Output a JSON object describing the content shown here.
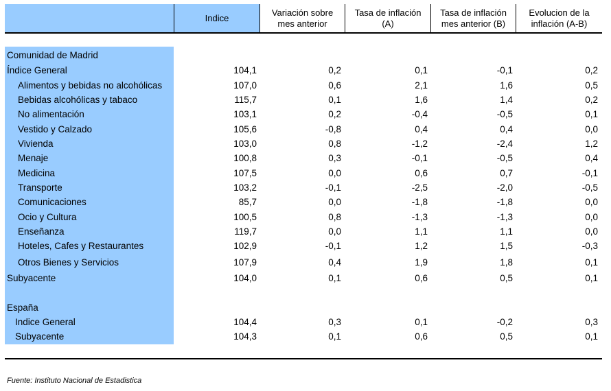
{
  "header": {
    "columns": [
      "Indice",
      "Variación sobre mes anterior",
      "Tasa de inflación (A)",
      "Tasa de inflación mes anterior (B)",
      "Evolucion de la inflación (A-B)"
    ]
  },
  "sections": [
    {
      "title": "Comunidad de Madrid",
      "rows": [
        {
          "label": "Índice General",
          "indent": 0,
          "values": [
            "104,1",
            "0,2",
            "0,1",
            "-0,1",
            "0,2"
          ]
        },
        {
          "label": "Alimentos y bebidas no alcohólicas",
          "indent": 1,
          "values": [
            "107,0",
            "0,6",
            "2,1",
            "1,6",
            "0,5"
          ]
        },
        {
          "label": "Bebidas alcohólicas y tabaco",
          "indent": 1,
          "values": [
            "115,7",
            "0,1",
            "1,6",
            "1,4",
            "0,2"
          ]
        },
        {
          "label": "No alimentación",
          "indent": 1,
          "values": [
            "103,1",
            "0,2",
            "-0,4",
            "-0,5",
            "0,1"
          ]
        },
        {
          "label": "Vestido y Calzado",
          "indent": 1,
          "values": [
            "105,6",
            "-0,8",
            "0,4",
            "0,4",
            "0,0"
          ]
        },
        {
          "label": "Vivienda",
          "indent": 1,
          "values": [
            "103,0",
            "0,8",
            "-1,2",
            "-2,4",
            "1,2"
          ]
        },
        {
          "label": "Menaje",
          "indent": 1,
          "values": [
            "100,8",
            "0,3",
            "-0,1",
            "-0,5",
            "0,4"
          ]
        },
        {
          "label": "Medicina",
          "indent": 1,
          "values": [
            "107,5",
            "0,0",
            "0,6",
            "0,7",
            "-0,1"
          ]
        },
        {
          "label": "Transporte",
          "indent": 1,
          "values": [
            "103,2",
            "-0,1",
            "-2,5",
            "-2,0",
            "-0,5"
          ]
        },
        {
          "label": "Comunicaciones",
          "indent": 1,
          "values": [
            "85,7",
            "0,0",
            "-1,8",
            "-1,8",
            "0,0"
          ]
        },
        {
          "label": "Ocio y Cultura",
          "indent": 1,
          "values": [
            "100,5",
            "0,8",
            "-1,3",
            "-1,3",
            "0,0"
          ]
        },
        {
          "label": "Enseñanza",
          "indent": 1,
          "values": [
            "119,7",
            "0,0",
            "1,1",
            "1,1",
            "0,0"
          ]
        },
        {
          "label": "Hoteles, Cafes y Restaurantes",
          "indent": 1,
          "values": [
            "102,9",
            "-0,1",
            "1,2",
            "1,5",
            "-0,3"
          ]
        },
        {
          "label": "Otros Bienes y Servicios",
          "indent": 1,
          "values": [
            "107,9",
            "0,4",
            "1,9",
            "1,8",
            "0,1"
          ]
        },
        {
          "label": "Subyacente",
          "indent": 0,
          "values": [
            "104,0",
            "0,1",
            "0,6",
            "0,5",
            "0,1"
          ]
        }
      ]
    },
    {
      "title": "España",
      "rows": [
        {
          "label": "Indice General",
          "indent": 2,
          "values": [
            "104,4",
            "0,3",
            "0,1",
            "-0,2",
            "0,3"
          ]
        },
        {
          "label": "Subyacente",
          "indent": 2,
          "values": [
            "104,3",
            "0,1",
            "0,6",
            "0,5",
            "0,1"
          ]
        }
      ]
    }
  ],
  "source": "Fuente: Instituto Nacional de Estadistica"
}
